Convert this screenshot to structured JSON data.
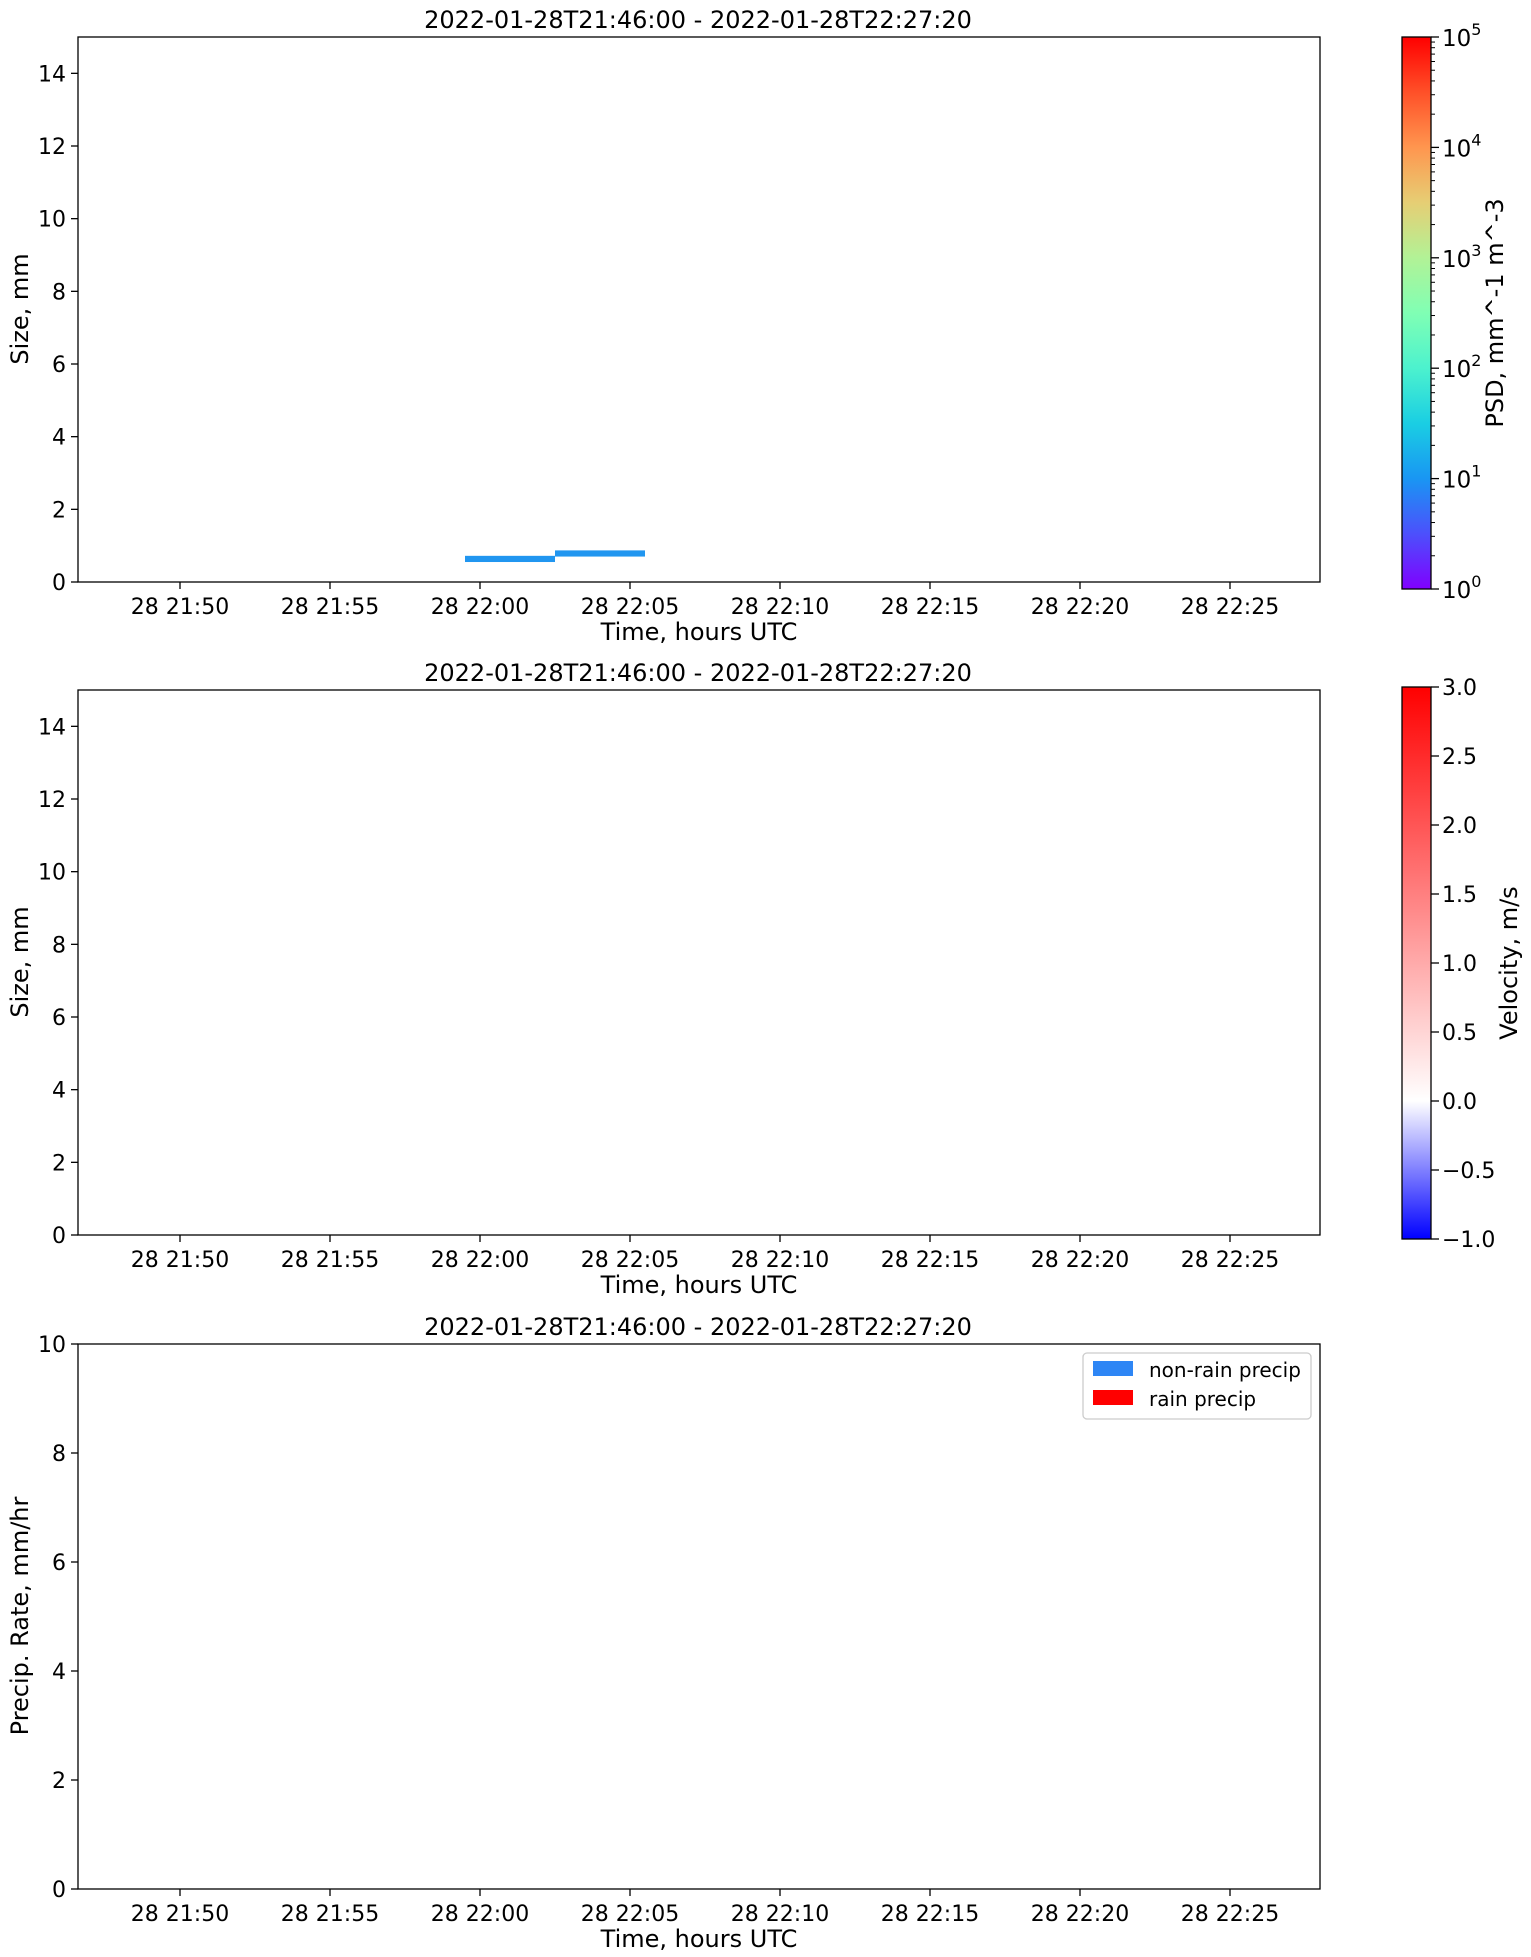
{
  "chart_data": [
    {
      "type": "heatmap",
      "title": "2022-01-28T21:46:00 - 2022-01-28T22:27:20",
      "xlabel": "Time, hours UTC",
      "ylabel": "Size, mm",
      "x_ticks": [
        "28 21:50",
        "28 21:55",
        "28 22:00",
        "28 22:05",
        "28 22:10",
        "28 22:15",
        "28 22:20",
        "28 22:25"
      ],
      "x_tick_minutes": [
        230,
        235,
        240,
        245,
        250,
        255,
        260,
        265
      ],
      "xlim_minutes": [
        226.6,
        268
      ],
      "y_ticks": [
        "0",
        "2",
        "4",
        "6",
        "8",
        "10",
        "12",
        "14"
      ],
      "ylim": [
        0,
        15
      ],
      "cells": [
        {
          "t0": 239.5,
          "t1": 242.5,
          "y0": 0.55,
          "y1": 0.72,
          "color": "#2196f0"
        },
        {
          "t0": 242.5,
          "t1": 245.5,
          "y0": 0.7,
          "y1": 0.87,
          "color": "#2196f0"
        }
      ],
      "colorbar": {
        "label": "PSD, mm^-1 m^-3",
        "scale": "log",
        "ticks": [
          {
            "base": "10",
            "exp": "0"
          },
          {
            "base": "10",
            "exp": "1"
          },
          {
            "base": "10",
            "exp": "2"
          },
          {
            "base": "10",
            "exp": "3"
          },
          {
            "base": "10",
            "exp": "4"
          },
          {
            "base": "10",
            "exp": "5"
          }
        ],
        "range": [
          1,
          100000
        ],
        "colormap": "rainbow"
      }
    },
    {
      "type": "heatmap",
      "title": "2022-01-28T21:46:00 - 2022-01-28T22:27:20",
      "xlabel": "Time, hours UTC",
      "ylabel": "Size, mm",
      "x_ticks": [
        "28 21:50",
        "28 21:55",
        "28 22:00",
        "28 22:05",
        "28 22:10",
        "28 22:15",
        "28 22:20",
        "28 22:25"
      ],
      "x_tick_minutes": [
        230,
        235,
        240,
        245,
        250,
        255,
        260,
        265
      ],
      "xlim_minutes": [
        226.6,
        268
      ],
      "y_ticks": [
        "0",
        "2",
        "4",
        "6",
        "8",
        "10",
        "12",
        "14"
      ],
      "ylim": [
        0,
        15
      ],
      "cells": [],
      "colorbar": {
        "label": "Velocity, m/s",
        "scale": "two-slope",
        "ticks": [
          "−1.0",
          "−0.5",
          "0.0",
          "0.5",
          "1.0",
          "1.5",
          "2.0",
          "2.5",
          "3.0"
        ],
        "tick_values": [
          -1.0,
          -0.5,
          0.0,
          0.5,
          1.0,
          1.5,
          2.0,
          2.5,
          3.0
        ],
        "range": [
          -1.0,
          3.0
        ],
        "center": 0.0,
        "colormap": "bwr"
      }
    },
    {
      "type": "bar",
      "title": "2022-01-28T21:46:00 - 2022-01-28T22:27:20",
      "xlabel": "Time, hours UTC",
      "ylabel": "Precip. Rate, mm/hr",
      "x_ticks": [
        "28 21:50",
        "28 21:55",
        "28 22:00",
        "28 22:05",
        "28 22:10",
        "28 22:15",
        "28 22:20",
        "28 22:25"
      ],
      "x_tick_minutes": [
        230,
        235,
        240,
        245,
        250,
        255,
        260,
        265
      ],
      "xlim_minutes": [
        226.6,
        268
      ],
      "y_ticks": [
        "0",
        "2",
        "4",
        "6",
        "8",
        "10"
      ],
      "ylim": [
        0,
        10
      ],
      "legend_position": "top-right",
      "series": [
        {
          "name": "non-rain precip",
          "color": "#2e86f5",
          "values": []
        },
        {
          "name": "rain precip",
          "color": "#ff0000",
          "values": []
        }
      ]
    }
  ]
}
